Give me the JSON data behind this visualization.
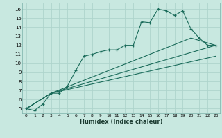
{
  "xlabel": "Humidex (Indice chaleur)",
  "bg_color": "#c8e8e0",
  "grid_color": "#aed4cc",
  "line_color": "#1a6b5a",
  "xlim": [
    -0.5,
    23.5
  ],
  "ylim": [
    4.5,
    16.7
  ],
  "xticks": [
    0,
    1,
    2,
    3,
    4,
    5,
    6,
    7,
    8,
    9,
    10,
    11,
    12,
    13,
    14,
    15,
    16,
    17,
    18,
    19,
    20,
    21,
    22,
    23
  ],
  "yticks": [
    5,
    6,
    7,
    8,
    9,
    10,
    11,
    12,
    13,
    14,
    15,
    16
  ],
  "series": [
    {
      "x": [
        0,
        1,
        2,
        3,
        4,
        5,
        6,
        7,
        8,
        9,
        10,
        11,
        12,
        13,
        14,
        15,
        16,
        17,
        18,
        19,
        20,
        21,
        22,
        23
      ],
      "y": [
        5.0,
        4.8,
        5.5,
        6.7,
        6.7,
        7.5,
        9.2,
        10.8,
        11.0,
        11.3,
        11.5,
        11.5,
        12.0,
        12.0,
        14.6,
        14.5,
        16.0,
        15.8,
        15.3,
        15.8,
        13.8,
        12.8,
        12.0,
        12.0
      ],
      "marker": true
    },
    {
      "x": [
        0,
        3,
        23
      ],
      "y": [
        5.0,
        6.7,
        10.8
      ],
      "marker": false
    },
    {
      "x": [
        0,
        3,
        20,
        23
      ],
      "y": [
        5.0,
        6.7,
        12.8,
        12.0
      ],
      "marker": false
    },
    {
      "x": [
        0,
        3,
        23
      ],
      "y": [
        5.0,
        6.7,
        12.0
      ],
      "marker": false
    }
  ]
}
